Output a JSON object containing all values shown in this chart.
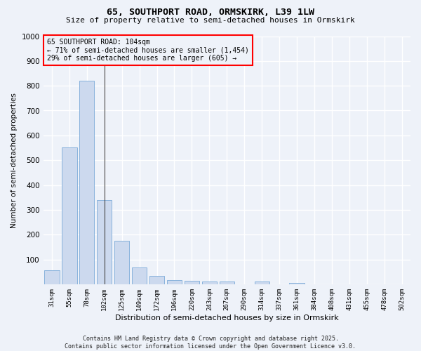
{
  "title1": "65, SOUTHPORT ROAD, ORMSKIRK, L39 1LW",
  "title2": "Size of property relative to semi-detached houses in Ormskirk",
  "xlabel": "Distribution of semi-detached houses by size in Ormskirk",
  "ylabel": "Number of semi-detached properties",
  "categories": [
    "31sqm",
    "55sqm",
    "78sqm",
    "102sqm",
    "125sqm",
    "149sqm",
    "172sqm",
    "196sqm",
    "220sqm",
    "243sqm",
    "267sqm",
    "290sqm",
    "314sqm",
    "337sqm",
    "361sqm",
    "384sqm",
    "408sqm",
    "431sqm",
    "455sqm",
    "478sqm",
    "502sqm"
  ],
  "values": [
    55,
    550,
    820,
    338,
    175,
    68,
    33,
    17,
    15,
    12,
    12,
    0,
    12,
    0,
    5,
    0,
    0,
    0,
    0,
    0,
    0
  ],
  "bar_color_default": "#ccd9ee",
  "bar_color_highlight": "#ccd9ee",
  "highlight_index": 3,
  "annotation_text_line1": "65 SOUTHPORT ROAD: 104sqm",
  "annotation_text_line2": "← 71% of semi-detached houses are smaller (1,454)",
  "annotation_text_line3": "29% of semi-detached houses are larger (605) →",
  "ylim": [
    0,
    1000
  ],
  "yticks": [
    0,
    100,
    200,
    300,
    400,
    500,
    600,
    700,
    800,
    900,
    1000
  ],
  "footer1": "Contains HM Land Registry data © Crown copyright and database right 2025.",
  "footer2": "Contains public sector information licensed under the Open Government Licence v3.0.",
  "bg_color": "#eef2f9",
  "grid_color": "#ffffff",
  "bar_edge_color": "#7aaad8"
}
